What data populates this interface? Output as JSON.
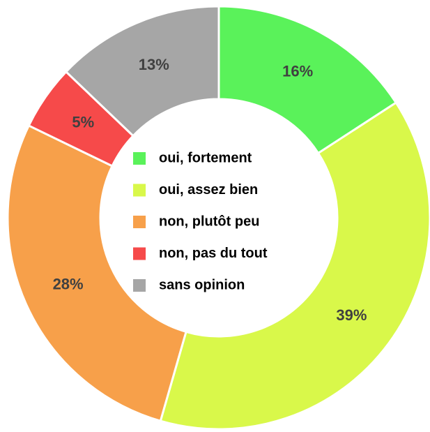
{
  "chart_data": {
    "type": "donut",
    "categories": [
      "oui, fortement",
      "oui, assez bien",
      "non, plutôt peu",
      "non, pas du tout",
      "sans opinion"
    ],
    "values": [
      16,
      39,
      28,
      5,
      13
    ],
    "value_labels": [
      "16%",
      "39%",
      "28%",
      "5%",
      "13%"
    ],
    "colors": [
      "#5af25a",
      "#d9f84a",
      "#f7a04a",
      "#f64a4a",
      "#a6a6a6"
    ]
  }
}
